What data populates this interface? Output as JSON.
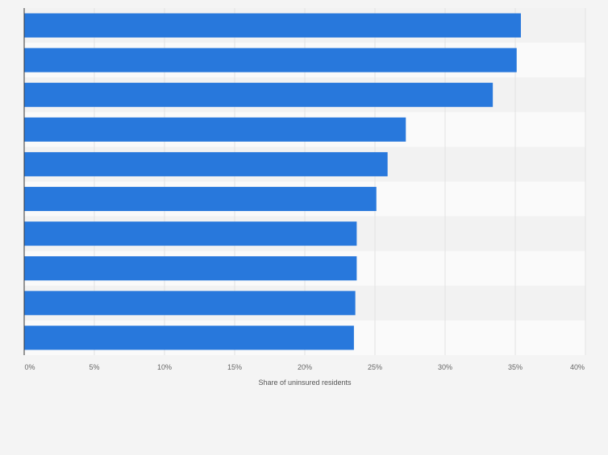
{
  "chart_data": {
    "type": "bar",
    "orientation": "horizontal",
    "categories": [
      "",
      "",
      "",
      "",
      "",
      "",
      "",
      "",
      "",
      ""
    ],
    "values": [
      35.4,
      35.1,
      33.4,
      27.2,
      25.9,
      25.1,
      23.7,
      23.7,
      23.6,
      23.5
    ],
    "xlabel": "Share of uninsured residents",
    "xlim": [
      0,
      40
    ],
    "x_ticks": [
      "0%",
      "5%",
      "10%",
      "15%",
      "20%",
      "25%",
      "30%",
      "35%",
      "40%"
    ],
    "grid": true,
    "legend": "none",
    "colors": {
      "bar": "#2878dc",
      "band_dark": "#f2f2f2",
      "band_light": "#fafafa",
      "gridline": "#e3e3e3",
      "axis": "#333333"
    }
  }
}
